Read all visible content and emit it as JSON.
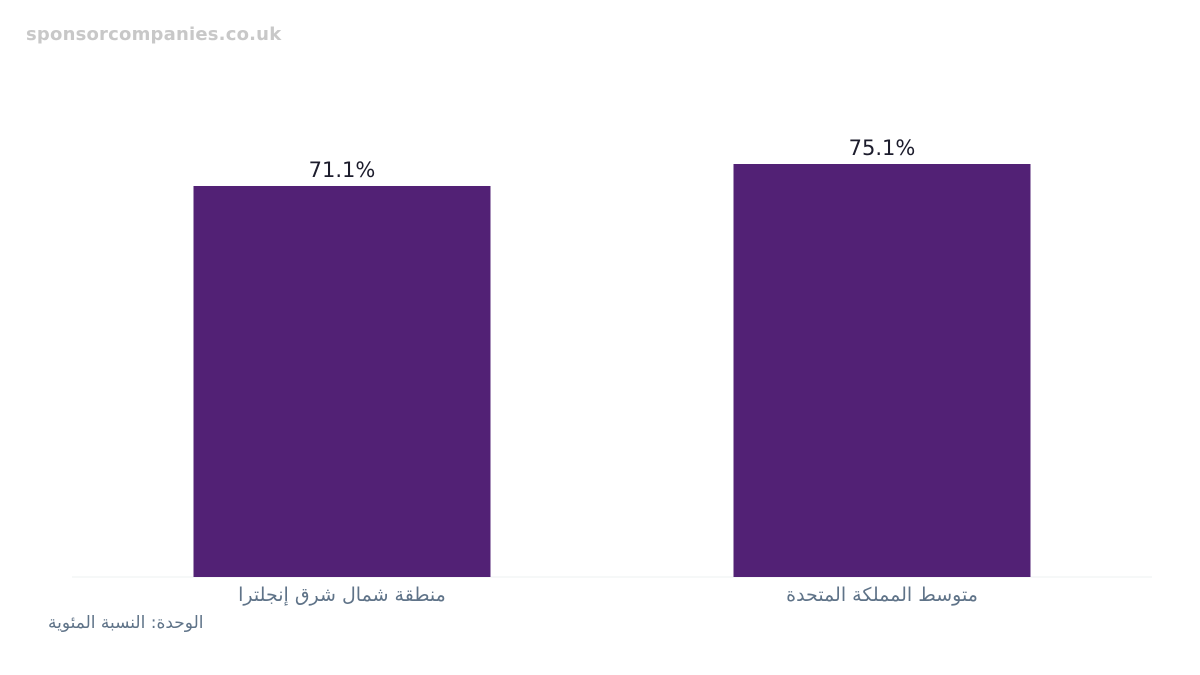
{
  "watermark": "sponsorcompanies.co.uk",
  "unit_note": "الوحدة: النسبة المئوية",
  "colors": {
    "bar": "#522175",
    "baseline": "#eef0f2",
    "value_text": "#1c1c2c",
    "axis_text": "#5f7388"
  },
  "chart_data": {
    "type": "bar",
    "title": "",
    "xlabel": "",
    "ylabel": "",
    "categories": [
      "منطقة شمال شرق إنجلترا",
      "متوسط المملكة المتحدة"
    ],
    "values": [
      71.1,
      75.1
    ],
    "value_labels": [
      "71.1%",
      "75.1%"
    ],
    "ylim": [
      0,
      75.1
    ],
    "grid": false,
    "legend": "none"
  }
}
